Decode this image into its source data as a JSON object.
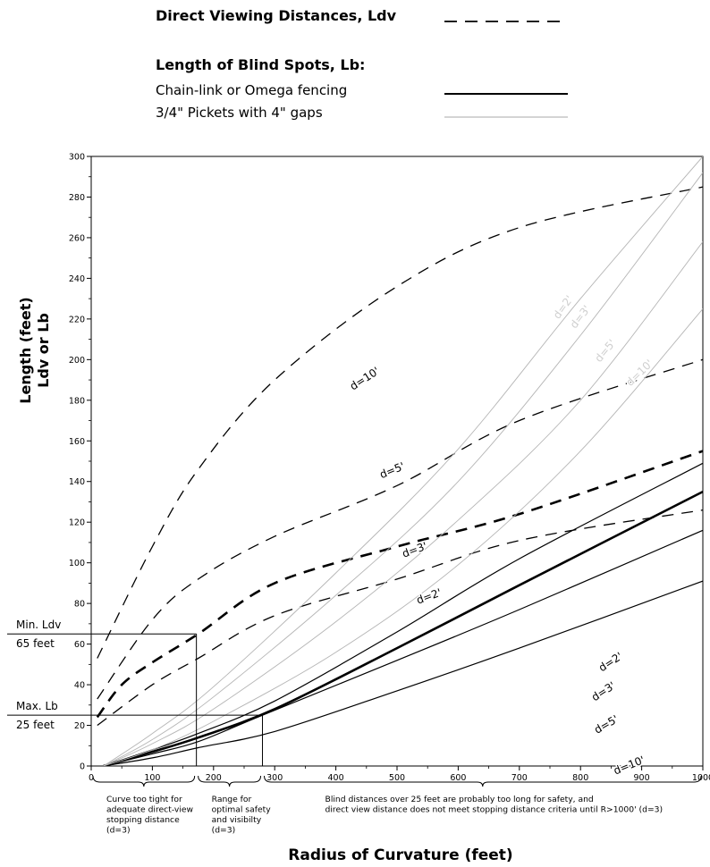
{
  "chart_data": {
    "type": "line",
    "title": "",
    "xlabel": "Radius of Curvature (feet)",
    "ylabel": "Length (feet)",
    "ylabel2": "Ldv or Lb",
    "xlim": [
      0,
      1000
    ],
    "ylim": [
      0,
      300
    ],
    "xticks": [
      0,
      100,
      200,
      300,
      400,
      500,
      600,
      700,
      800,
      900,
      1000
    ],
    "yticks": [
      0,
      20,
      40,
      60,
      80,
      100,
      120,
      140,
      160,
      180,
      200,
      220,
      240,
      260,
      280,
      300
    ],
    "grid": false,
    "legend": {
      "group1_title": "Direct Viewing Distances, Ldv",
      "group2_title": "Length of Blind Spots, Lb:",
      "chain_label": "Chain-link or Omega fencing",
      "picket_label": "3/4\" Pickets with 4\" gaps"
    },
    "series": [
      {
        "name": "Ldv d=10'",
        "style": "dashed",
        "label": "d=10'",
        "x": [
          10,
          100,
          175,
          300,
          500,
          700,
          1000
        ],
        "y": [
          53,
          108,
          146,
          190,
          236,
          265,
          285
        ]
      },
      {
        "name": "Ldv d=5'",
        "style": "dashed",
        "label": "d=5'",
        "x": [
          10,
          100,
          175,
          300,
          500,
          700,
          1000
        ],
        "y": [
          33,
          72,
          92,
          113,
          138,
          170,
          200
        ]
      },
      {
        "name": "Ldv d=3'",
        "style": "dashed-heavy",
        "label": "d=3'",
        "x": [
          10,
          50,
          100,
          175,
          300,
          500,
          700,
          1000
        ],
        "y": [
          24,
          40,
          51,
          65,
          90,
          108,
          124,
          155
        ]
      },
      {
        "name": "Ldv d=2'",
        "style": "dashed",
        "label": "d=2'",
        "x": [
          10,
          100,
          175,
          300,
          500,
          700,
          1000
        ],
        "y": [
          20,
          40,
          53,
          74,
          92,
          111,
          126
        ]
      },
      {
        "name": "Lb chain-link d=2'",
        "style": "solid",
        "label": "d=2'",
        "x": [
          20,
          100,
          175,
          300,
          500,
          700,
          1000
        ],
        "y": [
          0,
          8,
          16,
          32,
          66,
          102,
          149
        ]
      },
      {
        "name": "Lb chain-link d=3'",
        "style": "solid-heavy",
        "label": "d=3'",
        "x": [
          20,
          100,
          175,
          300,
          500,
          700,
          1000
        ],
        "y": [
          0,
          7,
          14,
          28,
          58,
          89,
          135
        ]
      },
      {
        "name": "Lb chain-link d=5'",
        "style": "solid",
        "label": "d=5'",
        "x": [
          20,
          100,
          175,
          280,
          500,
          700,
          1000
        ],
        "y": [
          0,
          6,
          12,
          25,
          52,
          77,
          116
        ]
      },
      {
        "name": "Lb chain-link d=10'",
        "style": "solid",
        "label": "d=10'",
        "x": [
          20,
          100,
          175,
          300,
          500,
          700,
          1000
        ],
        "y": [
          0,
          4,
          9,
          17,
          37,
          58,
          91
        ]
      },
      {
        "name": "Lb pickets d=2'",
        "style": "thin",
        "label": "d=2'",
        "x": [
          20,
          100,
          200,
          400,
          600,
          800,
          1000
        ],
        "y": [
          0,
          16,
          39,
          95,
          156,
          230,
          300
        ]
      },
      {
        "name": "Lb pickets d=3'",
        "style": "thin",
        "label": "d=3'",
        "x": [
          20,
          100,
          200,
          400,
          600,
          800,
          1000
        ],
        "y": [
          0,
          13,
          34,
          84,
          140,
          212,
          292
        ]
      },
      {
        "name": "Lb pickets d=5'",
        "style": "thin",
        "label": "d=5'",
        "x": [
          20,
          100,
          200,
          400,
          600,
          800,
          1000
        ],
        "y": [
          0,
          11,
          28,
          71,
          121,
          180,
          258
        ]
      },
      {
        "name": "Lb pickets d=10'",
        "style": "thin",
        "label": "d=10'",
        "x": [
          20,
          100,
          200,
          400,
          600,
          800,
          1000
        ],
        "y": [
          0,
          8,
          22,
          56,
          99,
          155,
          225
        ]
      }
    ],
    "reference_lines": [
      {
        "label_top": "Min. Ldv",
        "label_bottom": "65 feet",
        "y": 65,
        "x_end": 172
      },
      {
        "label_top": "Max. Lb",
        "label_bottom": "25 feet",
        "y": 25,
        "x_end": 280
      }
    ],
    "ranges": [
      {
        "x_start": 0,
        "x_end": 172,
        "text": [
          "Curve too tight for",
          "adequate direct-view",
          "stopping distance",
          "(d=3)"
        ]
      },
      {
        "x_start": 172,
        "x_end": 280,
        "text": [
          "Range for",
          "optimal safety",
          "and visibilty",
          "(d=3)"
        ]
      },
      {
        "x_start": 280,
        "x_end": 1000,
        "text": [
          "Blind distances over 25 feet are probably too long for safety, and",
          "direct view distance does not meet stopping distance criteria until R>1000' (d=3)"
        ]
      }
    ]
  }
}
